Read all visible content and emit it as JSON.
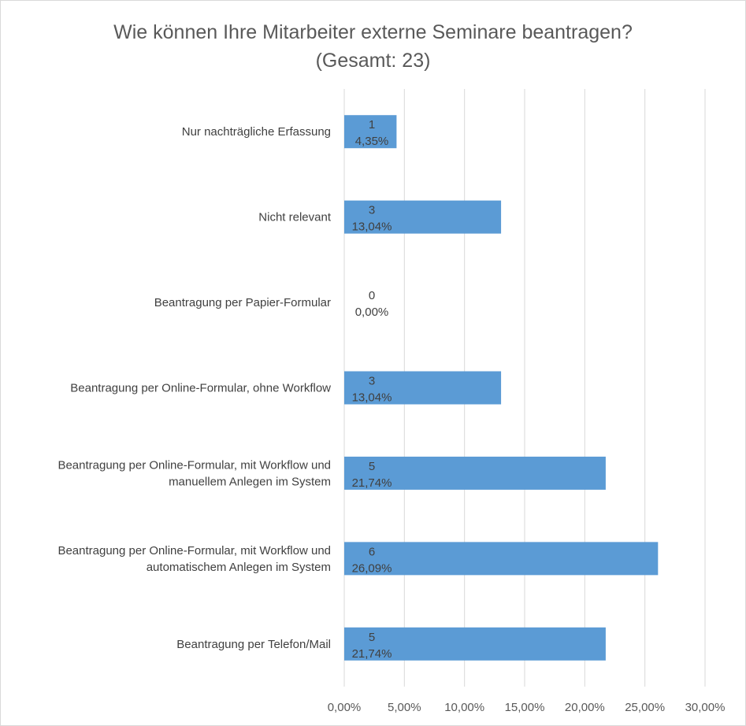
{
  "chart_data": {
    "type": "bar",
    "orientation": "horizontal",
    "title": "Wie können Ihre Mitarbeiter externe Seminare beantragen?",
    "subtitle": "(Gesamt: 23)",
    "categories": [
      "Nur nachträgliche Erfassung",
      "Nicht relevant",
      "Beantragung per Papier-Formular",
      "Beantragung per Online-Formular, ohne Workflow",
      "Beantragung per Online-Formular, mit Workflow und manuellem Anlegen im System",
      "Beantragung per Online-Formular, mit Workflow und automatischem Anlegen im System",
      "Beantragung per Telefon/Mail"
    ],
    "category_lines": [
      [
        "Nur nachträgliche Erfassung"
      ],
      [
        "Nicht relevant"
      ],
      [
        "Beantragung per Papier-Formular"
      ],
      [
        "Beantragung per Online-Formular, ohne Workflow"
      ],
      [
        "Beantragung per Online-Formular, mit Workflow und",
        "manuellem Anlegen im System"
      ],
      [
        "Beantragung per Online-Formular, mit Workflow und",
        "automatischem Anlegen im System"
      ],
      [
        "Beantragung per Telefon/Mail"
      ]
    ],
    "counts": [
      1,
      3,
      0,
      3,
      5,
      6,
      5
    ],
    "values": [
      4.35,
      13.04,
      0.0,
      13.04,
      21.74,
      26.09,
      21.74
    ],
    "data_labels": [
      [
        "1",
        "4,35%"
      ],
      [
        "3",
        "13,04%"
      ],
      [
        "0",
        "0,00%"
      ],
      [
        "3",
        "13,04%"
      ],
      [
        "5",
        "21,74%"
      ],
      [
        "6",
        "26,09%"
      ],
      [
        "5",
        "21,74%"
      ]
    ],
    "xlim": [
      0,
      30
    ],
    "x_ticks": [
      0,
      5,
      10,
      15,
      20,
      25,
      30
    ],
    "x_tick_labels": [
      "0,00%",
      "5,00%",
      "10,00%",
      "15,00%",
      "20,00%",
      "25,00%",
      "30,00%"
    ],
    "grid": "vertical",
    "legend": "none",
    "bar_color": "#5b9bd5",
    "grid_color": "#d9d9d9",
    "text_color": "#404040"
  }
}
